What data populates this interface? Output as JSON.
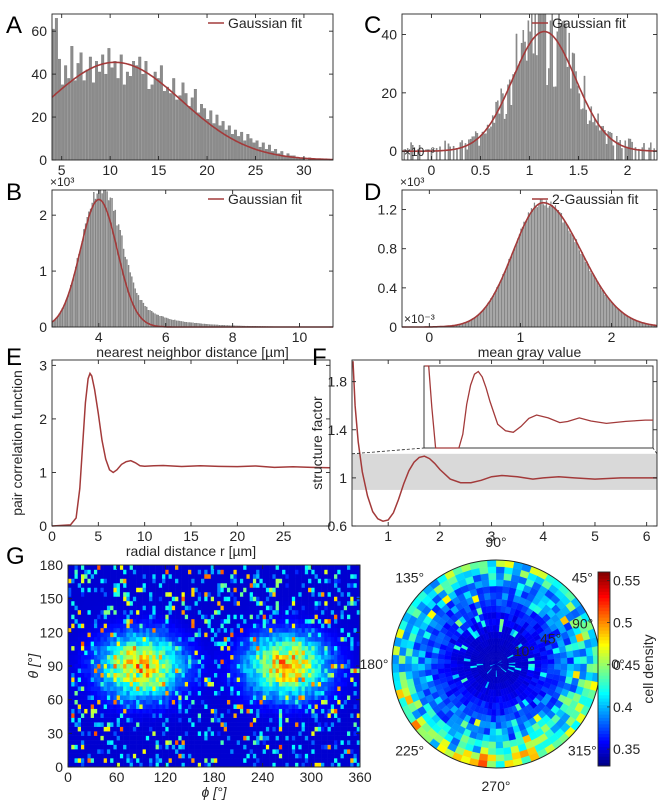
{
  "figure": {
    "panel_labels": [
      "A",
      "B",
      "C",
      "D",
      "E",
      "F",
      "G"
    ],
    "colors": {
      "bar": "#8c8c8c",
      "fit": "#a33a3a",
      "inset_band": "#d9d9d9",
      "axis": "#262626"
    }
  },
  "chart_data": [
    {
      "id": "A",
      "type": "bar",
      "xlim": [
        4,
        33
      ],
      "ylim": [
        0,
        68
      ],
      "xticks": [
        5,
        10,
        15,
        20,
        25,
        30
      ],
      "yticks": [
        0,
        20,
        40,
        60
      ],
      "values": [
        61,
        66,
        47,
        35,
        44,
        38,
        53,
        37,
        45,
        50,
        37,
        42,
        48,
        36,
        46,
        41,
        49,
        40,
        52,
        43,
        46,
        38,
        49,
        35,
        41,
        39,
        46,
        44,
        48,
        40,
        46,
        33,
        35,
        41,
        38,
        44,
        32,
        34,
        31,
        38,
        28,
        30,
        36,
        31,
        25,
        29,
        33,
        22,
        26,
        24,
        19,
        23,
        17,
        21,
        16,
        18,
        14,
        16,
        12,
        14,
        11,
        13,
        9,
        12,
        10,
        8,
        9,
        6,
        8,
        5,
        7,
        4,
        5,
        3,
        4,
        2,
        3,
        2,
        2,
        1,
        1,
        1,
        0,
        1,
        0,
        0,
        0,
        0,
        0,
        0,
        0
      ],
      "fit": {
        "label": "Gaussian fit",
        "mu": 10.5,
        "sigma": 6.9,
        "amp": 45.5
      },
      "xlabel": "",
      "ylabel": ""
    },
    {
      "id": "B",
      "type": "bar",
      "multiplier": "×10³",
      "xlim": [
        2.6,
        11
      ],
      "ylim": [
        0,
        2.45
      ],
      "xticks": [
        4,
        6,
        8,
        10
      ],
      "yticks": [
        0,
        1,
        2
      ],
      "fit": {
        "label": "Gaussian fit",
        "mu": 4.0,
        "sigma": 0.55,
        "amp": 2.28
      },
      "tail": {
        "amp": 0.55,
        "x0": 4.7,
        "decay": 1.05
      },
      "xlabel": "nearest neighbor distance [µm]",
      "ylabel": ""
    },
    {
      "id": "C",
      "type": "bar",
      "multiplier": "×10⁻³",
      "xlim": [
        -0.3,
        2.3
      ],
      "ylim": [
        -3,
        47
      ],
      "xticks": [
        0,
        0.5,
        1,
        1.5,
        2
      ],
      "yticks": [
        0,
        20,
        40
      ],
      "fit": {
        "label": "Gaussian fit",
        "mu": 1.15,
        "sigma": 0.32,
        "amp": 41
      },
      "xlabel": "",
      "ylabel": ""
    },
    {
      "id": "D",
      "type": "bar",
      "multiplier": "×10³",
      "multiplier_x": "×10⁻³",
      "xlim": [
        -0.3,
        2.5
      ],
      "ylim": [
        0,
        1.4
      ],
      "xticks": [
        0,
        1,
        2
      ],
      "yticks": [
        0,
        0.4,
        0.8,
        1.2
      ],
      "fit": {
        "label": "2-Gaussian fit",
        "mu": 1.25,
        "sigma_left": 0.33,
        "sigma_right": 0.42,
        "amp": 1.27
      },
      "xlabel": "mean gray value",
      "ylabel": ""
    },
    {
      "id": "E",
      "type": "line",
      "xlim": [
        0,
        30
      ],
      "ylim": [
        0,
        3.1
      ],
      "xticks": [
        0,
        5,
        10,
        15,
        20,
        25
      ],
      "yticks": [
        0,
        1,
        2,
        3
      ],
      "x": [
        0,
        2,
        2.6,
        3,
        3.3,
        3.6,
        3.9,
        4.1,
        4.3,
        4.6,
        5.0,
        5.4,
        5.8,
        6.2,
        6.6,
        7.0,
        7.5,
        8.0,
        8.5,
        9,
        9.5,
        10,
        11,
        12,
        14,
        16,
        18,
        20,
        22,
        24,
        26,
        28,
        30
      ],
      "y": [
        0,
        0.02,
        0.15,
        0.7,
        1.5,
        2.3,
        2.75,
        2.85,
        2.8,
        2.55,
        2.1,
        1.6,
        1.25,
        1.05,
        1.0,
        1.05,
        1.15,
        1.2,
        1.22,
        1.18,
        1.14,
        1.12,
        1.11,
        1.12,
        1.1,
        1.11,
        1.1,
        1.1,
        1.11,
        1.1,
        1.1,
        1.1,
        1.1
      ],
      "xlabel": "radial distance r [µm]",
      "ylabel": "pair correlation function"
    },
    {
      "id": "F",
      "type": "line",
      "xlim": [
        0.3,
        6.2
      ],
      "ylim": [
        0.6,
        1.98
      ],
      "xticks": [
        1,
        2,
        3,
        4,
        5,
        6
      ],
      "yticks": [
        0.6,
        1,
        1.4,
        1.8
      ],
      "band": [
        0.9,
        1.2
      ],
      "x": [
        0.32,
        0.36,
        0.42,
        0.5,
        0.6,
        0.7,
        0.8,
        0.9,
        1.0,
        1.1,
        1.2,
        1.3,
        1.4,
        1.5,
        1.6,
        1.7,
        1.8,
        1.9,
        2.0,
        2.2,
        2.4,
        2.6,
        2.8,
        3.0,
        3.2,
        3.5,
        3.8,
        4.0,
        4.3,
        4.6,
        5.0,
        5.5,
        6.0,
        6.2
      ],
      "y": [
        1.97,
        1.6,
        1.3,
        1.05,
        0.85,
        0.72,
        0.66,
        0.64,
        0.65,
        0.71,
        0.82,
        0.95,
        1.06,
        1.13,
        1.17,
        1.18,
        1.16,
        1.12,
        1.07,
        0.99,
        0.96,
        0.96,
        0.98,
        1.01,
        1.02,
        1.01,
        0.99,
        1.0,
        1.01,
        1.0,
        0.99,
        1.0,
        1.0,
        1.0
      ],
      "xlabel": "",
      "ylabel": "structure factor"
    },
    {
      "id": "G1",
      "type": "heatmap",
      "xlim": [
        0,
        360
      ],
      "ylim": [
        0,
        180
      ],
      "xticks": [
        0,
        60,
        120,
        180,
        240,
        300,
        360
      ],
      "yticks": [
        0,
        30,
        60,
        90,
        120,
        150,
        180
      ],
      "xlabel": "ϕ [°]",
      "ylabel": "θ [°]",
      "hotspots_phi": [
        90,
        270
      ],
      "hotspot_theta": 90
    },
    {
      "id": "G2",
      "type": "heatmap",
      "projection": "polar",
      "angle_labels": [
        "0°",
        "45°",
        "90°",
        "135°",
        "180°",
        "225°",
        "270°",
        "315°"
      ],
      "radial_labels": [
        "10°",
        "45°",
        "90°"
      ],
      "colorbar": {
        "label": "cell density",
        "min": 0.33,
        "max": 0.56,
        "ticks": [
          0.35,
          0.4,
          0.45,
          0.5,
          0.55
        ],
        "tick_labels": [
          "0.35",
          "0.4",
          "0.45",
          "0.5",
          "0.55"
        ]
      }
    }
  ]
}
